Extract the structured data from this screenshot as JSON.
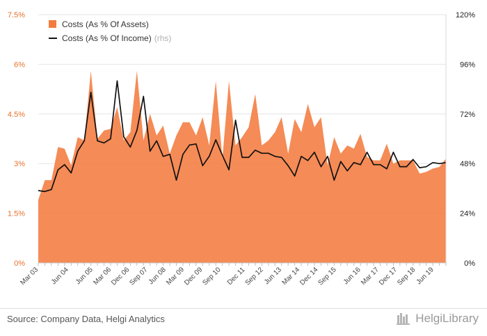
{
  "chart_data": {
    "type": "area",
    "legend_position": "top-left",
    "series": [
      {
        "name": "Costs (As % Of Assets)",
        "axis": "left",
        "style": "area",
        "color": "#f47b3f",
        "values": [
          1.9,
          2.5,
          2.5,
          3.5,
          3.45,
          2.95,
          3.8,
          3.7,
          5.8,
          3.75,
          4.0,
          4.05,
          4.7,
          3.7,
          3.95,
          5.8,
          3.7,
          4.5,
          3.85,
          4.15,
          3.3,
          3.85,
          4.25,
          4.25,
          3.85,
          4.4,
          3.55,
          5.5,
          3.15,
          5.5,
          3.55,
          3.8,
          4.1,
          5.1,
          3.55,
          3.7,
          3.95,
          4.4,
          3.3,
          4.35,
          3.95,
          4.8,
          4.1,
          4.4,
          2.95,
          3.8,
          3.3,
          3.55,
          3.45,
          3.9,
          3.2,
          3.1,
          3.1,
          3.6,
          3.0,
          3.1,
          3.1,
          3.1,
          2.7,
          2.75,
          2.85,
          2.9,
          3.15
        ]
      },
      {
        "name": "Costs (As % Of Income)",
        "legend_suffix": "(rhs)",
        "axis": "right",
        "style": "line",
        "color": "#111111",
        "values": [
          35,
          34.5,
          35.5,
          45,
          47.5,
          43.5,
          54,
          59,
          82.5,
          59,
          58,
          60,
          88,
          61,
          56,
          64,
          80.5,
          54,
          59,
          51.5,
          52.5,
          40,
          52.5,
          57,
          57.5,
          47,
          51.5,
          59.5,
          52,
          45,
          69,
          51,
          51,
          54.5,
          53,
          53,
          51.5,
          51,
          47,
          42,
          51.5,
          49.5,
          53.5,
          46.5,
          51.5,
          40,
          49,
          44.5,
          48.5,
          47.5,
          53.5,
          47.5,
          47.5,
          45.5,
          53.5,
          46.5,
          46.5,
          50,
          46,
          46.5,
          48.5,
          48,
          48.5
        ]
      }
    ],
    "x_labels": [
      "Mar 03",
      "Jun 04",
      "Jun 05",
      "Mar 06",
      "Dec 06",
      "Sep 07",
      "Jun 08",
      "Mar 09",
      "Dec 09",
      "Sep 10",
      "Dec 11",
      "Sep 12",
      "Jun 13",
      "Mar 14",
      "Dec 14",
      "Sep 15",
      "Jun 16",
      "Mar 17",
      "Dec 17",
      "Sep 18",
      "Jun 19"
    ],
    "x_label_index": [
      0,
      5,
      9,
      12,
      15,
      18,
      21,
      24,
      27,
      30,
      34,
      37,
      40,
      43,
      46,
      49,
      53,
      56,
      59,
      62,
      65
    ],
    "y_left": {
      "ylim": [
        0,
        7.5
      ],
      "ticks": [
        0,
        1.5,
        3,
        4.5,
        6,
        7.5
      ],
      "tick_labels": [
        "0%",
        "1.5%",
        "3%",
        "4.5%",
        "6%",
        "7.5%"
      ]
    },
    "y_right": {
      "ylim": [
        0,
        120
      ],
      "ticks": [
        0,
        24,
        48,
        72,
        96,
        120
      ],
      "tick_labels": [
        "0%",
        "24%",
        "48%",
        "72%",
        "96%",
        "120%"
      ]
    },
    "grid": "horizontal"
  },
  "footer": {
    "source": "Source: Company Data, Helgi Analytics",
    "brand": "HelgiLibrary"
  }
}
